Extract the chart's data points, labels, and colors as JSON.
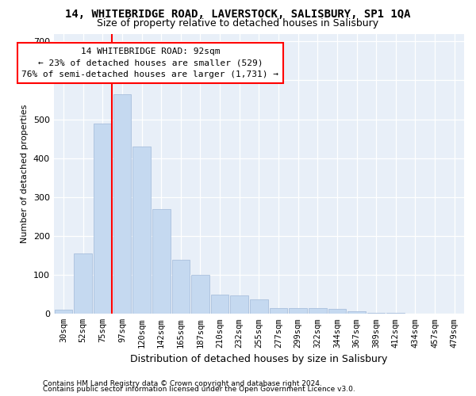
{
  "title": "14, WHITEBRIDGE ROAD, LAVERSTOCK, SALISBURY, SP1 1QA",
  "subtitle": "Size of property relative to detached houses in Salisbury",
  "xlabel": "Distribution of detached houses by size in Salisbury",
  "ylabel": "Number of detached properties",
  "footer_line1": "Contains HM Land Registry data © Crown copyright and database right 2024.",
  "footer_line2": "Contains public sector information licensed under the Open Government Licence v3.0.",
  "bar_labels": [
    "30sqm",
    "52sqm",
    "75sqm",
    "97sqm",
    "120sqm",
    "142sqm",
    "165sqm",
    "187sqm",
    "210sqm",
    "232sqm",
    "255sqm",
    "277sqm",
    "299sqm",
    "322sqm",
    "344sqm",
    "367sqm",
    "389sqm",
    "412sqm",
    "434sqm",
    "457sqm",
    "479sqm"
  ],
  "bar_values": [
    10,
    155,
    490,
    565,
    430,
    270,
    140,
    100,
    50,
    47,
    37,
    15,
    15,
    15,
    12,
    7,
    3,
    2,
    1,
    1,
    1
  ],
  "bar_color": "#c5d9f0",
  "bar_edge_color": "#a0b8d8",
  "vline_x_index": 2,
  "vline_color": "red",
  "annotation_line1": "14 WHITEBRIDGE ROAD: 92sqm",
  "annotation_line2": "← 23% of detached houses are smaller (529)",
  "annotation_line3": "76% of semi-detached houses are larger (1,731) →",
  "annotation_box_color": "white",
  "annotation_box_edge": "red",
  "ylim": [
    0,
    720
  ],
  "yticks": [
    0,
    100,
    200,
    300,
    400,
    500,
    600,
    700
  ],
  "bg_color": "#e8eff8",
  "title_fontsize": 10,
  "subtitle_fontsize": 9,
  "ylabel_fontsize": 8,
  "xlabel_fontsize": 9
}
